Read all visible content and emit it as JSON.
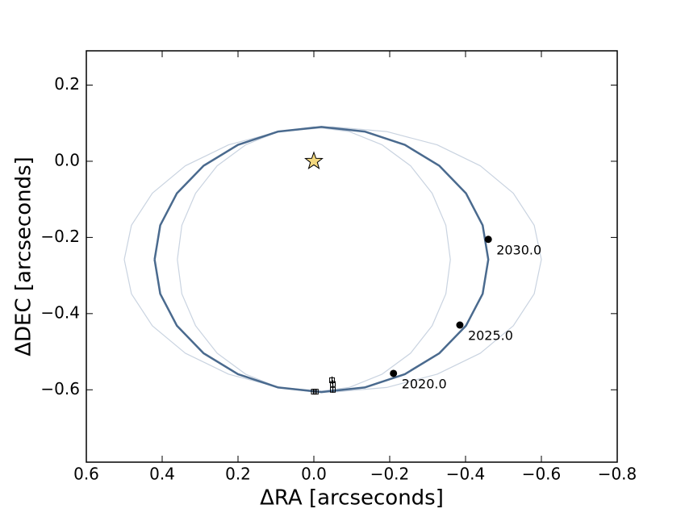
{
  "chart_data": {
    "type": "line",
    "xlabel": "ΔRA [arcseconds]",
    "ylabel": "ΔDEC [arcseconds]",
    "xlim": [
      0.6,
      -0.8
    ],
    "ylim": [
      -0.79,
      0.29
    ],
    "xticks": [
      0.6,
      0.4,
      0.2,
      {
        "value": 0,
        "label": "0.0"
      },
      {
        "value": -0.2,
        "label": "−0.2"
      },
      {
        "value": -0.4,
        "label": "−0.4"
      },
      {
        "value": -0.6,
        "label": "−0.6"
      },
      {
        "value": -0.8,
        "label": "−0.8"
      }
    ],
    "yticks": [
      0.2,
      {
        "value": 0,
        "label": "0.0"
      },
      {
        "value": -0.2,
        "label": "−0.2"
      },
      {
        "value": -0.4,
        "label": "−0.4"
      },
      {
        "value": -0.6,
        "label": "−0.6"
      }
    ],
    "series": [
      {
        "color": "#c9d3e0",
        "x": [
          0.5,
          0.481,
          0.426,
          0.339,
          0.225,
          0.092,
          -0.05,
          -0.192,
          -0.325,
          -0.439,
          -0.526,
          -0.581,
          -0.6,
          -0.581,
          -0.526,
          -0.439,
          -0.325,
          -0.192,
          -0.05,
          0.092,
          0.225,
          0.339,
          0.426,
          0.481,
          0.5
        ],
        "y": [
          -0.258,
          -0.168,
          -0.084,
          -0.012,
          0.043,
          0.078,
          0.09,
          0.078,
          0.043,
          -0.012,
          -0.084,
          -0.168,
          -0.258,
          -0.348,
          -0.432,
          -0.504,
          -0.559,
          -0.594,
          -0.606,
          -0.594,
          -0.559,
          -0.504,
          -0.432,
          -0.348,
          -0.258
        ]
      },
      {
        "color": "#c9d3e0",
        "x": [
          0.36,
          0.348,
          0.312,
          0.255,
          0.18,
          0.093,
          0,
          -0.093,
          -0.18,
          -0.255,
          -0.312,
          -0.348,
          -0.36,
          -0.348,
          -0.312,
          -0.255,
          -0.18,
          -0.093,
          0,
          0.093,
          0.18,
          0.255,
          0.312,
          0.348,
          0.36
        ],
        "y": [
          -0.258,
          -0.168,
          -0.084,
          -0.012,
          0.043,
          0.078,
          0.09,
          0.078,
          0.043,
          -0.012,
          -0.084,
          -0.168,
          -0.258,
          -0.348,
          -0.432,
          -0.504,
          -0.559,
          -0.594,
          -0.606,
          -0.594,
          -0.559,
          -0.504,
          -0.432,
          -0.348,
          -0.258
        ]
      },
      {
        "color": "#4a6a8e",
        "x": [
          0.42,
          0.405,
          0.361,
          0.291,
          0.2,
          0.094,
          -0.02,
          -0.134,
          -0.24,
          -0.331,
          -0.401,
          -0.445,
          -0.46,
          -0.445,
          -0.401,
          -0.331,
          -0.24,
          -0.134,
          -0.02,
          0.094,
          0.2,
          0.291,
          0.361,
          0.405,
          0.42
        ],
        "y": [
          -0.258,
          -0.168,
          -0.084,
          -0.012,
          0.043,
          0.078,
          0.09,
          0.078,
          0.043,
          -0.012,
          -0.084,
          -0.168,
          -0.258,
          -0.348,
          -0.432,
          -0.504,
          -0.559,
          -0.594,
          -0.606,
          -0.594,
          -0.559,
          -0.504,
          -0.432,
          -0.348,
          -0.258
        ]
      }
    ],
    "epochs": {
      "x": [
        -0.21,
        -0.385,
        -0.46
      ],
      "y": [
        -0.557,
        -0.43,
        -0.205
      ],
      "labels": [
        "2020.0",
        "2025.0",
        "2030.0"
      ],
      "color": "#000000"
    },
    "star": {
      "x": 0,
      "y": 0,
      "color": "#f2d77e"
    },
    "observations": {
      "x": [
        0.0,
        -0.005,
        -0.05,
        -0.05,
        -0.048
      ],
      "y": [
        -0.605,
        -0.605,
        -0.6,
        -0.585,
        -0.575
      ],
      "yerr": [
        0.005,
        0.005,
        0.008,
        0.01,
        0.01
      ]
    }
  }
}
